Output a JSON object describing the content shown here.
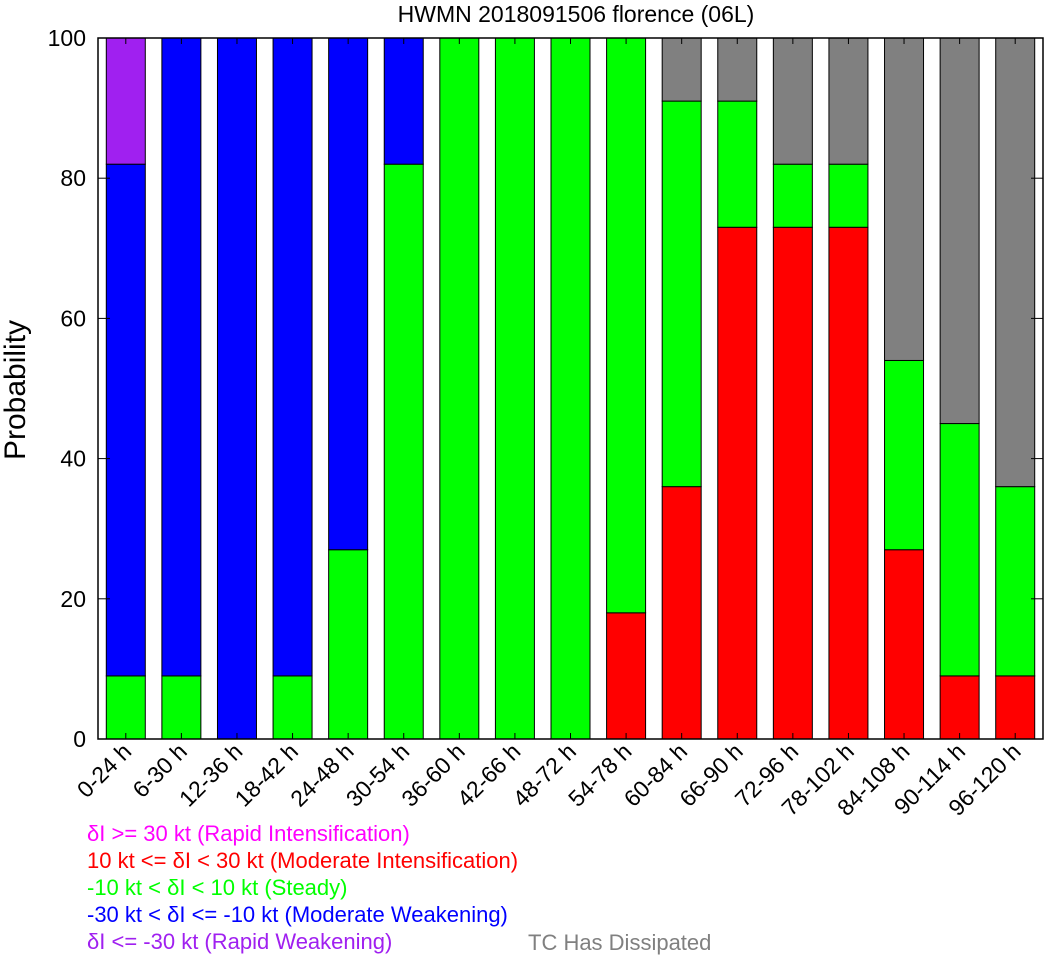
{
  "chart_data": {
    "type": "bar",
    "stacked": true,
    "title": "HWMN 2018091506 florence (06L)",
    "ylabel": "Probability",
    "xlabel": "",
    "ylim": [
      0,
      100
    ],
    "yticks": [
      "0",
      "20",
      "40",
      "60",
      "80",
      "100"
    ],
    "categories": [
      "0-24 h",
      "6-30 h",
      "12-36 h",
      "18-42 h",
      "24-48 h",
      "30-54 h",
      "36-60 h",
      "42-66 h",
      "48-72 h",
      "54-78 h",
      "60-84 h",
      "66-90 h",
      "72-96 h",
      "78-102 h",
      "84-108 h",
      "90-114 h",
      "96-120 h"
    ],
    "series": [
      {
        "name": "δI >= 30 kt (Rapid Intensification)",
        "color": "#ff00ff",
        "values": [
          0,
          0,
          0,
          0,
          0,
          0,
          0,
          0,
          0,
          0,
          0,
          0,
          0,
          0,
          0,
          0,
          0
        ]
      },
      {
        "name": "10 kt <= δI < 30 kt (Moderate Intensification)",
        "color": "#ff0000",
        "values": [
          0,
          0,
          0,
          0,
          0,
          0,
          0,
          0,
          0,
          18,
          36,
          73,
          73,
          73,
          27,
          9,
          9
        ]
      },
      {
        "name": "-10 kt < δI < 10 kt (Steady)",
        "color": "#00ff00",
        "values": [
          9,
          9,
          0,
          9,
          27,
          82,
          100,
          100,
          100,
          82,
          55,
          18,
          9,
          9,
          27,
          36,
          27
        ]
      },
      {
        "name": "-30 kt < δI <= -10 kt (Moderate Weakening)",
        "color": "#0000ff",
        "values": [
          73,
          91,
          100,
          91,
          73,
          18,
          0,
          0,
          0,
          0,
          0,
          0,
          0,
          0,
          0,
          0,
          0
        ]
      },
      {
        "name": "δI <= -30 kt (Rapid Weakening)",
        "color": "#a020f0",
        "values": [
          18,
          0,
          0,
          0,
          0,
          0,
          0,
          0,
          0,
          0,
          0,
          0,
          0,
          0,
          0,
          0,
          0
        ]
      },
      {
        "name": "TC Has Dissipated",
        "color": "#808080",
        "values": [
          0,
          0,
          0,
          0,
          0,
          0,
          0,
          0,
          0,
          0,
          9,
          9,
          18,
          18,
          46,
          55,
          64
        ]
      }
    ],
    "grid": false
  },
  "legend": {
    "ri": "δI >= 30 kt (Rapid Intensification)",
    "mi": "10 kt <= δI < 30 kt (Moderate Intensification)",
    "steady": "-10 kt < δI < 10 kt (Steady)",
    "mw": "-30 kt < δI <= -10 kt (Moderate Weakening)",
    "rw": "δI <= -30 kt (Rapid Weakening)",
    "dissipated": "TC Has Dissipated"
  }
}
